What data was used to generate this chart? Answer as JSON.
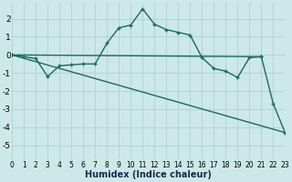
{
  "xlabel": "Humidex (Indice chaleur)",
  "xlim": [
    0,
    23
  ],
  "ylim": [
    -5.8,
    2.9
  ],
  "yticks": [
    -5,
    -4,
    -3,
    -2,
    -1,
    0,
    1,
    2
  ],
  "xticks": [
    0,
    1,
    2,
    3,
    4,
    5,
    6,
    7,
    8,
    9,
    10,
    11,
    12,
    13,
    14,
    15,
    16,
    17,
    18,
    19,
    20,
    21,
    22,
    23
  ],
  "bg_color": "#cce8e8",
  "grid_color": "#aacccc",
  "line_color": "#1a6b5a",
  "line1_x": [
    0,
    1,
    2,
    3,
    4,
    5,
    6,
    7,
    8,
    9,
    10,
    11,
    12,
    13,
    14,
    15,
    16,
    17,
    18,
    19,
    20,
    21
  ],
  "line1_y": [
    0.0,
    -0.1,
    -0.2,
    -1.2,
    -0.6,
    -0.55,
    -0.5,
    -0.5,
    0.65,
    1.5,
    1.65,
    2.55,
    1.7,
    1.4,
    1.25,
    1.1,
    -0.15,
    -0.75,
    -0.9,
    -1.25,
    -0.15,
    -0.1
  ],
  "line2_x": [
    0,
    23
  ],
  "line2_y": [
    0.0,
    -4.3
  ],
  "line3_x": [
    0,
    21,
    22,
    23
  ],
  "line3_y": [
    0.0,
    -0.1,
    -2.7,
    -4.3
  ]
}
